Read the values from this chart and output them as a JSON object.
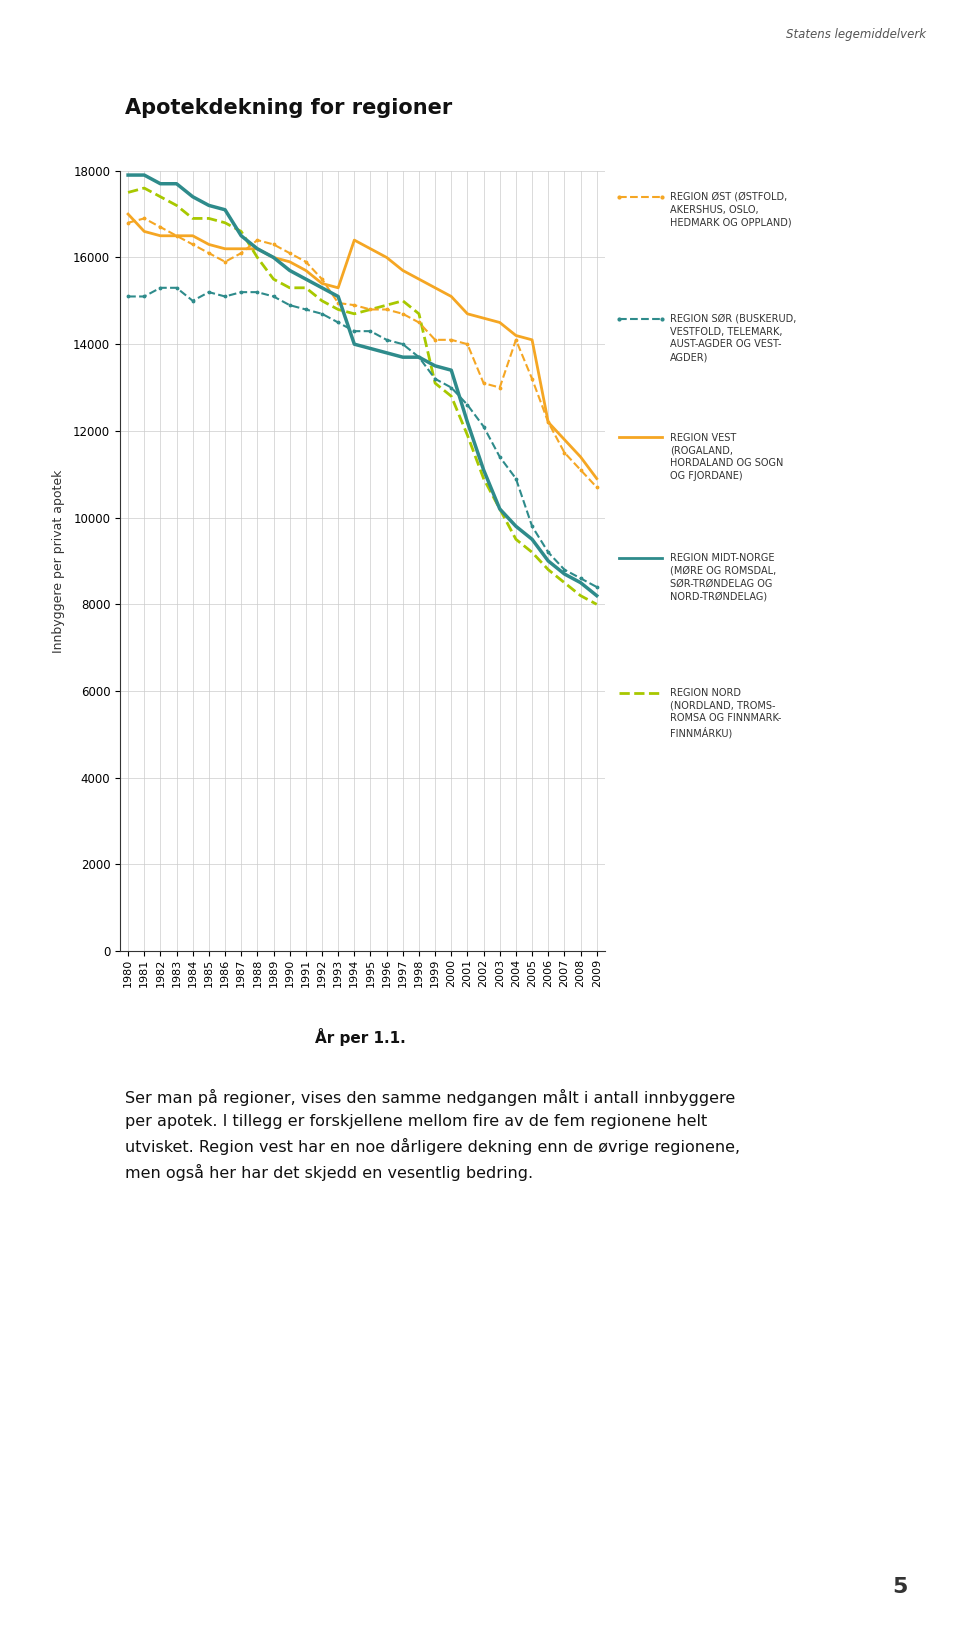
{
  "title": "Apotekdekning for regioner",
  "header": "Statens legemiddelverk",
  "ylabel": "Innbyggere per privat apotek",
  "xlabel": "År per 1.1.",
  "years": [
    1980,
    1981,
    1982,
    1983,
    1984,
    1985,
    1986,
    1987,
    1988,
    1989,
    1990,
    1991,
    1992,
    1993,
    1994,
    1995,
    1996,
    1997,
    1998,
    1999,
    2000,
    2001,
    2002,
    2003,
    2004,
    2005,
    2006,
    2007,
    2008,
    2009
  ],
  "region_ost": [
    16800,
    16900,
    16700,
    16500,
    16300,
    16100,
    15900,
    16100,
    16400,
    16300,
    16100,
    15900,
    15500,
    14950,
    14900,
    14800,
    14800,
    14700,
    14500,
    14100,
    14100,
    14000,
    13100,
    13000,
    14100,
    13200,
    12200,
    11500,
    11100,
    10700
  ],
  "region_sor": [
    15100,
    15100,
    15300,
    15300,
    15000,
    15200,
    15100,
    15200,
    15200,
    15100,
    14900,
    14800,
    14700,
    14500,
    14300,
    14300,
    14100,
    14000,
    13700,
    13200,
    13000,
    12600,
    12100,
    11400,
    10900,
    9800,
    9200,
    8800,
    8600,
    8400
  ],
  "region_vest": [
    17000,
    16600,
    16500,
    16500,
    16500,
    16300,
    16200,
    16200,
    16200,
    16000,
    15900,
    15700,
    15400,
    15300,
    16400,
    16200,
    16000,
    15700,
    15500,
    15300,
    15100,
    14700,
    14600,
    14500,
    14200,
    14100,
    12200,
    11800,
    11400,
    10900
  ],
  "region_midt": [
    17900,
    17900,
    17700,
    17700,
    17400,
    17200,
    17100,
    16500,
    16200,
    16000,
    15700,
    15500,
    15300,
    15100,
    14000,
    13900,
    13800,
    13700,
    13700,
    13500,
    13400,
    12200,
    11100,
    10200,
    9800,
    9500,
    9000,
    8700,
    8500,
    8200
  ],
  "region_nord": [
    17500,
    17600,
    17400,
    17200,
    16900,
    16900,
    16800,
    16600,
    16000,
    15500,
    15300,
    15300,
    15000,
    14800,
    14700,
    14800,
    14900,
    15000,
    14700,
    13100,
    12800,
    11900,
    10900,
    10200,
    9500,
    9200,
    8800,
    8500,
    8200,
    8000
  ],
  "color_ost": "#F5A623",
  "color_sor": "#2E8B8B",
  "color_vest": "#F5A623",
  "color_midt": "#2E8B8B",
  "color_nord": "#A8C800",
  "ylim": [
    0,
    18000
  ],
  "yticks": [
    0,
    2000,
    4000,
    6000,
    8000,
    10000,
    12000,
    14000,
    16000,
    18000
  ],
  "body_text": "Ser man på regioner, vises den samme nedgangen målt i antall innbyggere\nper apotek. I tillegg er forskjellene mellom fire av de fem regionene helt\nutvisket. Region vest har en noe dårligere dekning enn de øvrige regionene,\nmen også her har det skjedd en vesentlig bedring.",
  "footnote_num": "5",
  "legend_items": [
    {
      "color": "#F5A623",
      "style": "dashed_dot",
      "lines": [
        "REGION ØST (ØSTFOLD,",
        "AKERSHUS, OSLO,",
        "HEDMARK OG OPPLAND)"
      ]
    },
    {
      "color": "#2E8B8B",
      "style": "dashed_dot",
      "lines": [
        "REGION SØR (BUSKERUD,",
        "VESTFOLD, TELEMARK,",
        "AUST-AGDER OG VEST-",
        "AGDER)"
      ]
    },
    {
      "color": "#F5A623",
      "style": "solid",
      "lines": [
        "REGION VEST",
        "(ROGALAND,",
        "HORDALAND OG SOGN",
        "OG FJORDANE)"
      ]
    },
    {
      "color": "#2E8B8B",
      "style": "solid",
      "lines": [
        "REGION MIDT-NORGE",
        "(MØRE OG ROMSDAL,",
        "SØR-TRØNDELAG OG",
        "NORD-TRØNDELAG)"
      ]
    },
    {
      "color": "#A8C800",
      "style": "dashed",
      "lines": [
        "REGION NORD",
        "(NORDLAND, TROMS-",
        "ROMSA OG FINNMARK-",
        "FINNMÁRKU)"
      ]
    }
  ]
}
